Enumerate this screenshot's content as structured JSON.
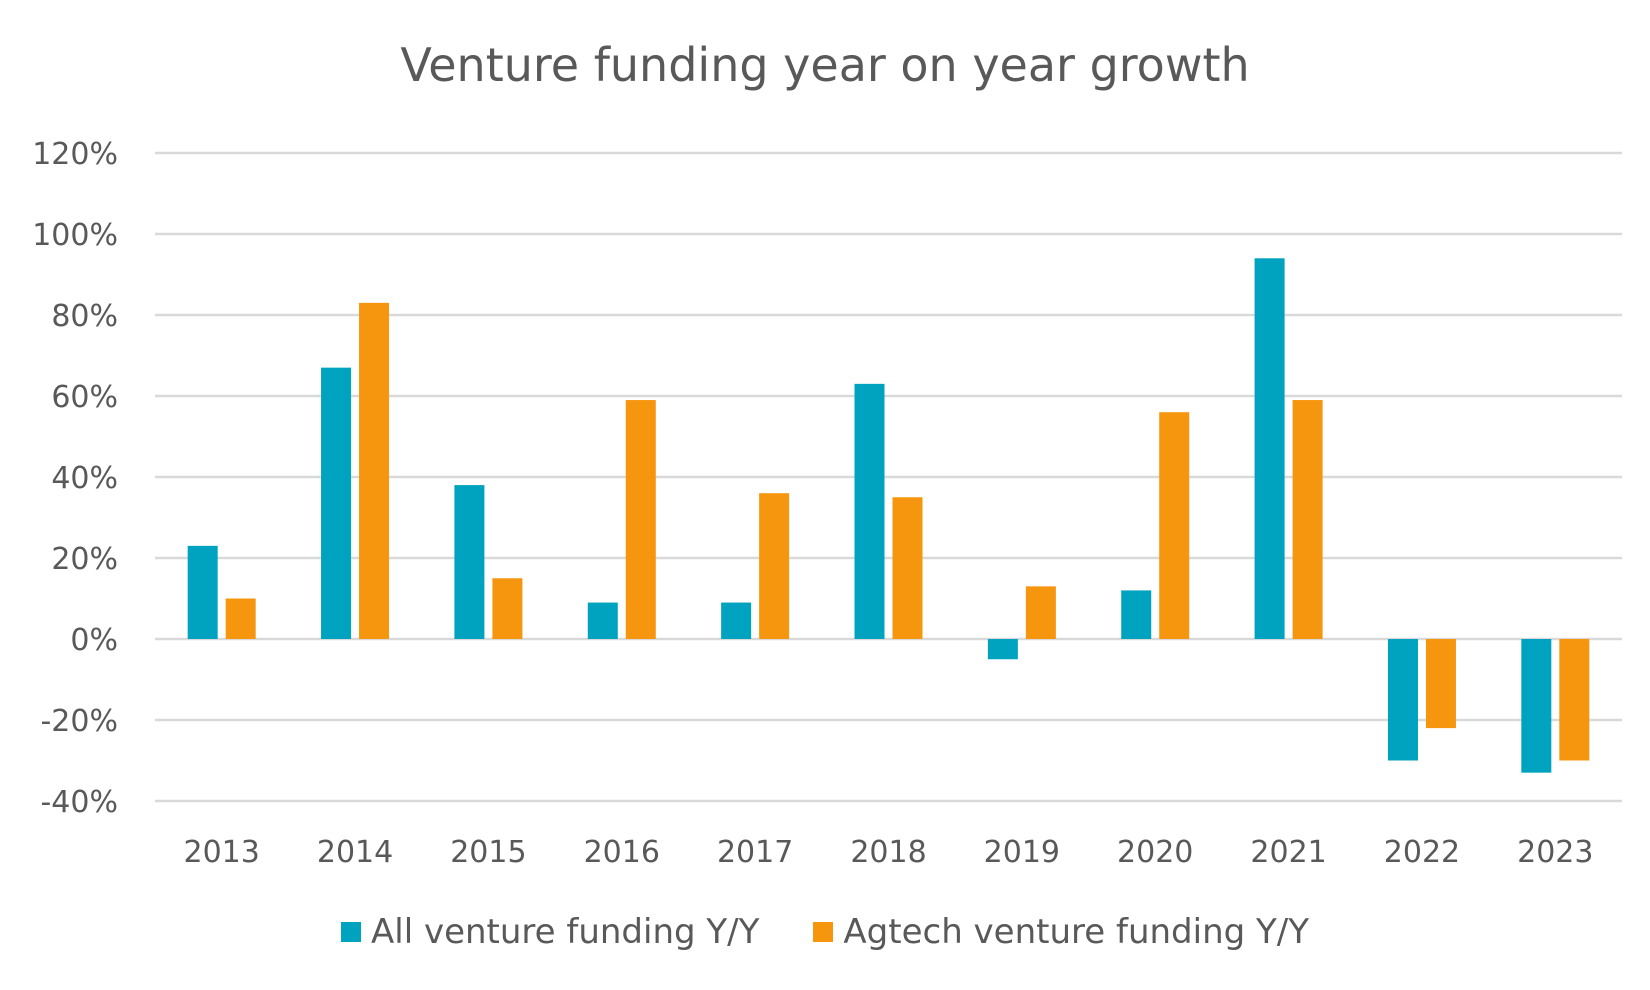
{
  "chart_data": {
    "type": "bar",
    "title": "Venture funding year on year growth",
    "categories": [
      "2013",
      "2014",
      "2015",
      "2016",
      "2017",
      "2018",
      "2019",
      "2020",
      "2021",
      "2022",
      "2023"
    ],
    "series": [
      {
        "name": "All venture funding Y/Y",
        "color": "#00A3BF",
        "values": [
          23,
          67,
          38,
          9,
          9,
          63,
          -5,
          12,
          94,
          -30,
          -33
        ]
      },
      {
        "name": "Agtech venture funding Y/Y",
        "color": "#F6950E",
        "values": [
          10,
          83,
          15,
          59,
          36,
          35,
          13,
          56,
          59,
          -22,
          -30
        ]
      }
    ],
    "ylim": [
      -40,
      120
    ],
    "yticks": [
      120,
      100,
      80,
      60,
      40,
      20,
      0,
      -20,
      -40
    ],
    "ytick_labels": [
      "120%",
      "100%",
      "80%",
      "60%",
      "40%",
      "20%",
      "0%",
      "-20%",
      "-40%"
    ],
    "value_unit": "%",
    "grid": true,
    "legend_position": "bottom",
    "xlabel": "",
    "ylabel": ""
  }
}
